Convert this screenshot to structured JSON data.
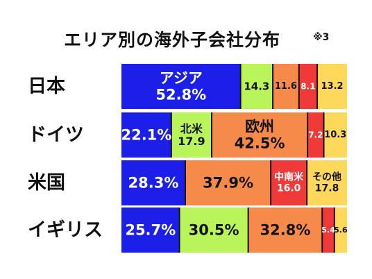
{
  "title": "エリア別の海外子会社分布",
  "note": "※3",
  "colors": {
    "asia": "#1b1fe8",
    "north_america": "#b9f55a",
    "europe": "#f68a4a",
    "latin_america": "#f03a3a",
    "other": "#fdd85a",
    "separator": "#111111"
  },
  "chart_data": {
    "type": "bar",
    "orientation": "horizontal",
    "stacked": true,
    "percent": true,
    "categories": [
      "日本",
      "ドイツ",
      "米国",
      "イギリス"
    ],
    "series": [
      {
        "name": "アジア",
        "color_key": "asia",
        "values": [
          52.8,
          22.1,
          28.3,
          25.7
        ]
      },
      {
        "name": "北米",
        "color_key": "north_america",
        "values": [
          14.3,
          17.9,
          0,
          30.5
        ]
      },
      {
        "name": "欧州",
        "color_key": "europe",
        "values": [
          11.6,
          42.5,
          37.9,
          32.8
        ]
      },
      {
        "name": "中南米",
        "color_key": "latin_america",
        "values": [
          8.1,
          7.2,
          16.0,
          5.4
        ]
      },
      {
        "name": "その他",
        "color_key": "other",
        "values": [
          13.2,
          10.3,
          17.8,
          5.6
        ]
      }
    ],
    "labels": [
      [
        {
          "series": 0,
          "lines": [
            "アジア",
            "52.8%"
          ],
          "size": 21,
          "color": "#ffffff"
        },
        {
          "series": 1,
          "lines": [
            "14.3"
          ],
          "size": 15,
          "color": "#111111"
        },
        {
          "series": 2,
          "lines": [
            "11.6"
          ],
          "size": 13,
          "color": "#111111"
        },
        {
          "series": 3,
          "lines": [
            "8.1"
          ],
          "size": 12,
          "color": "#ffffff"
        },
        {
          "series": 4,
          "lines": [
            "13.2"
          ],
          "size": 13,
          "color": "#111111"
        }
      ],
      [
        {
          "series": 0,
          "lines": [
            "22.1%"
          ],
          "size": 21,
          "color": "#ffffff"
        },
        {
          "series": 1,
          "lines": [
            "北米",
            "17.9"
          ],
          "size": 16,
          "color": "#111111"
        },
        {
          "series": 2,
          "lines": [
            "欧州",
            "42.5%"
          ],
          "size": 21,
          "color": "#111111"
        },
        {
          "series": 3,
          "lines": [
            "7.2"
          ],
          "size": 12,
          "color": "#ffffff"
        },
        {
          "series": 4,
          "lines": [
            "10.3"
          ],
          "size": 13,
          "color": "#111111"
        }
      ],
      [
        {
          "series": 0,
          "lines": [
            "28.3%"
          ],
          "size": 21,
          "color": "#ffffff"
        },
        {
          "series": 2,
          "lines": [
            "37.9%"
          ],
          "size": 21,
          "color": "#111111"
        },
        {
          "series": 3,
          "lines": [
            "中南米",
            "16.0"
          ],
          "size": 14,
          "color": "#ffffff"
        },
        {
          "series": 4,
          "lines": [
            "その他",
            "17.8"
          ],
          "size": 14,
          "color": "#111111"
        }
      ],
      [
        {
          "series": 0,
          "lines": [
            "25.7%"
          ],
          "size": 21,
          "color": "#ffffff"
        },
        {
          "series": 1,
          "lines": [
            "30.5%"
          ],
          "size": 21,
          "color": "#111111"
        },
        {
          "series": 2,
          "lines": [
            "32.8%"
          ],
          "size": 21,
          "color": "#111111"
        },
        {
          "series": 3,
          "lines": [
            "5.4"
          ],
          "size": 11,
          "color": "#ffffff"
        },
        {
          "series": 4,
          "lines": [
            "5.6"
          ],
          "size": 11,
          "color": "#111111"
        }
      ]
    ]
  }
}
